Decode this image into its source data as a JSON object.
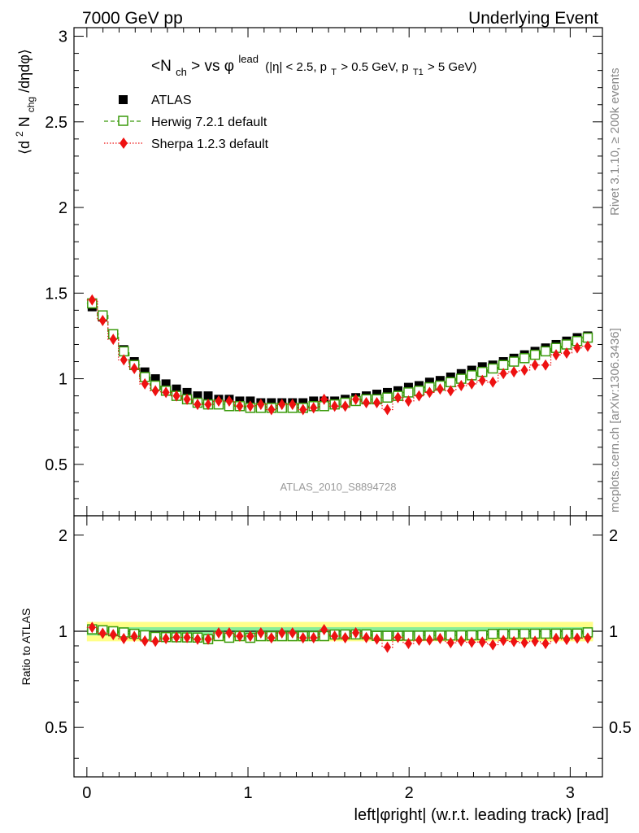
{
  "header": {
    "left": "7000 GeV pp",
    "right": "Underlying Event"
  },
  "side_labels": {
    "rivet": "Rivet 3.1.10, ≥ 200k events",
    "mcplots": "mcplots.cern.ch [arXiv:1306.3436]"
  },
  "watermark": "ATLAS_2010_S8894728",
  "title": {
    "lhs": "<N",
    "lhs_sub": "ch",
    "lhs_close": "> vs φ",
    "lead_sup": "lead",
    "cond_open": "(|η| < 2.5, p",
    "pt_sub": "T",
    "cond_mid": " > 0.5 GeV, p",
    "pt1_sub": "T1",
    "cond_close": " > 5 GeV)"
  },
  "ylabel_main": {
    "a": "⟨d",
    "sup2": "2",
    "b": " N",
    "sub": "chg",
    "c": "/dηdφ⟩"
  },
  "ylabel_ratio": "Ratio to ATLAS",
  "xlabel": "left|φright| (w.r.t. leading track) [rad]",
  "chart_data": {
    "type": "scatter",
    "title": "<Nch> vs phi_lead (|eta| < 2.5, pT > 0.5 GeV, pT1 > 5 GeV)",
    "xlabel": "left|phiright| (w.r.t. leading track) [rad]",
    "ylabel": "<d2 Nchg/detadphi>",
    "xlim": [
      -0.08,
      3.2
    ],
    "ylim": [
      0.2,
      3.05
    ],
    "ratio_ylim": [
      0.35,
      2.3
    ],
    "x_ticks": [
      "0",
      "1",
      "2",
      "3"
    ],
    "y_ticks": [
      "0.5",
      "1",
      "1.5",
      "2",
      "2.5",
      "3"
    ],
    "ratio_ticks": [
      "0.5",
      "1",
      "2"
    ],
    "legend": [
      "ATLAS",
      "Herwig 7.2.1 default",
      "Sherpa 1.2.3 default"
    ],
    "legend_position": "top-left",
    "x": [
      0.0327,
      0.0982,
      0.1636,
      0.2291,
      0.2945,
      0.36,
      0.4254,
      0.4909,
      0.5563,
      0.6218,
      0.6872,
      0.7527,
      0.8181,
      0.8836,
      0.949,
      1.0145,
      1.0799,
      1.1454,
      1.2108,
      1.2763,
      1.3417,
      1.4072,
      1.4726,
      1.5381,
      1.6035,
      1.669,
      1.7344,
      1.7999,
      1.8653,
      1.9308,
      1.9962,
      2.0617,
      2.1271,
      2.1926,
      2.258,
      2.3235,
      2.3889,
      2.4544,
      2.5198,
      2.5853,
      2.6507,
      2.7162,
      2.7816,
      2.8471,
      2.9125,
      2.978,
      3.0434,
      3.1089
    ],
    "series": [
      {
        "name": "ATLAS",
        "color": "#000000",
        "marker": "filled-square",
        "values": [
          1.42,
          1.36,
          1.26,
          1.17,
          1.1,
          1.04,
          1.0,
          0.97,
          0.94,
          0.92,
          0.9,
          0.9,
          0.88,
          0.88,
          0.87,
          0.87,
          0.86,
          0.86,
          0.86,
          0.86,
          0.86,
          0.87,
          0.87,
          0.87,
          0.88,
          0.89,
          0.9,
          0.91,
          0.92,
          0.93,
          0.95,
          0.96,
          0.98,
          0.99,
          1.01,
          1.03,
          1.05,
          1.07,
          1.08,
          1.1,
          1.12,
          1.14,
          1.16,
          1.18,
          1.2,
          1.22,
          1.24,
          1.25
        ]
      },
      {
        "name": "Herwig 7.2.1 default",
        "color": "#3a9a0c",
        "marker": "open-square",
        "values": [
          1.44,
          1.37,
          1.26,
          1.16,
          1.08,
          1.01,
          0.96,
          0.93,
          0.9,
          0.88,
          0.86,
          0.85,
          0.85,
          0.84,
          0.84,
          0.83,
          0.83,
          0.83,
          0.83,
          0.83,
          0.83,
          0.84,
          0.84,
          0.85,
          0.86,
          0.87,
          0.88,
          0.88,
          0.89,
          0.9,
          0.92,
          0.93,
          0.95,
          0.96,
          0.98,
          1.0,
          1.02,
          1.04,
          1.06,
          1.08,
          1.1,
          1.12,
          1.14,
          1.16,
          1.18,
          1.2,
          1.22,
          1.24
        ]
      },
      {
        "name": "Sherpa 1.2.3 default",
        "color": "#ee1111",
        "marker": "filled-diamond",
        "values": [
          1.46,
          1.34,
          1.23,
          1.11,
          1.06,
          0.97,
          0.93,
          0.92,
          0.9,
          0.88,
          0.85,
          0.85,
          0.87,
          0.87,
          0.84,
          0.84,
          0.85,
          0.82,
          0.85,
          0.85,
          0.82,
          0.83,
          0.88,
          0.84,
          0.84,
          0.88,
          0.86,
          0.86,
          0.82,
          0.89,
          0.87,
          0.9,
          0.92,
          0.94,
          0.93,
          0.96,
          0.97,
          0.99,
          0.98,
          1.03,
          1.04,
          1.05,
          1.08,
          1.08,
          1.14,
          1.15,
          1.18,
          1.19
        ]
      }
    ],
    "reference_band": {
      "inner": [
        0.97,
        1.03
      ],
      "outer": [
        0.93,
        1.07
      ]
    }
  }
}
